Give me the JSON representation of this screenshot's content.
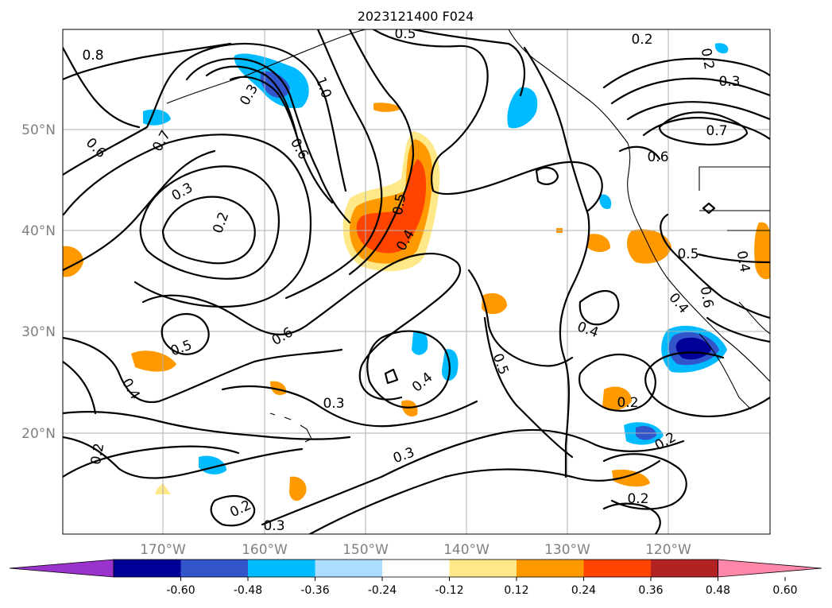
{
  "title": "2023121400 F024",
  "map": {
    "lat_labels": [
      "50°N",
      "40°N",
      "30°N",
      "20°N"
    ],
    "lon_labels": [
      "170°W",
      "160°W",
      "150°W",
      "140°W",
      "130°W",
      "120°W"
    ]
  },
  "contour_labels": [
    "0.5",
    "0.2",
    "0.8",
    "0.3",
    "1.0",
    "0.2",
    "0.3",
    "0.7",
    "0.6",
    "0.7",
    "0.6",
    "0.6",
    "0.3",
    "0.2",
    "0.5",
    "0.4",
    "0.5",
    "0.4",
    "0.6",
    "0.5",
    "0.4",
    "0.4",
    "0.5",
    "0.4",
    "0.3",
    "0.2",
    "0.4",
    "0.3",
    "0.2",
    "0.2",
    "0.2",
    "0.3",
    "0.2",
    "0.6"
  ],
  "colorbar": {
    "tick_labels": [
      "-0.60",
      "-0.48",
      "-0.36",
      "-0.24",
      "-0.12",
      "0.12",
      "0.24",
      "0.36",
      "0.48",
      "0.60"
    ],
    "colors": [
      "#9933cc",
      "#000099",
      "#3355cc",
      "#00bbff",
      "#aaddff",
      "#ffffff",
      "#ffe888",
      "#ff9900",
      "#ff4400",
      "#b22222",
      "#ff88aa"
    ]
  }
}
